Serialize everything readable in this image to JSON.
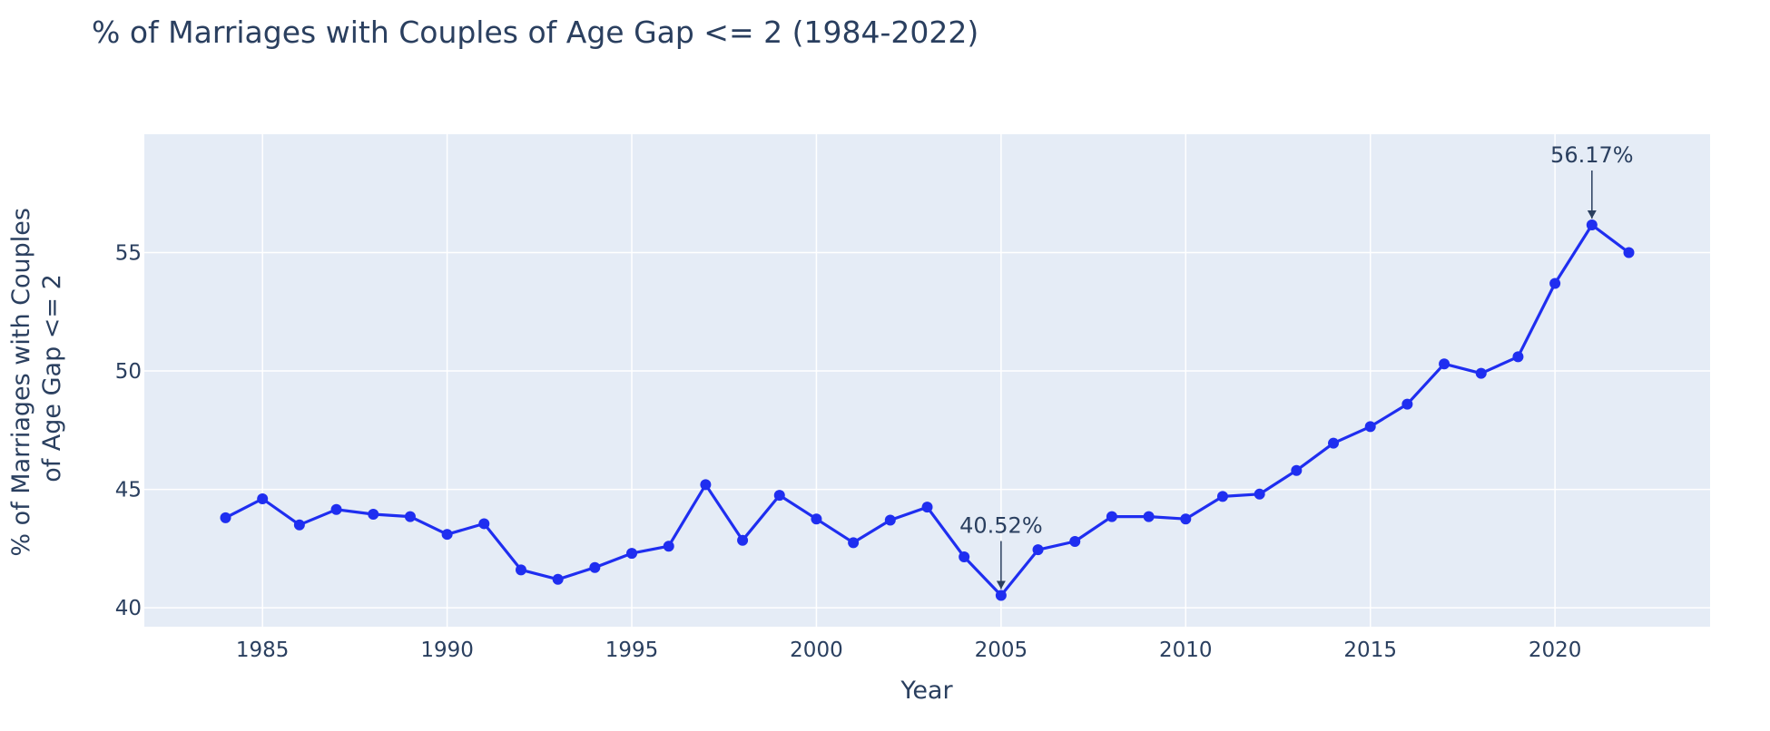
{
  "chart_data": {
    "type": "line",
    "title": "% of Marriages with Couples of Age Gap <= 2 (1984-2022)",
    "xlabel": "Year",
    "ylabel_lines": [
      "% of Marriages with Couples",
      "of Age Gap <= 2"
    ],
    "xlim": [
      1981.8,
      2024.2
    ],
    "ylim": [
      39.2,
      60.0
    ],
    "xticks": [
      1985,
      1990,
      1995,
      2000,
      2005,
      2010,
      2015,
      2020
    ],
    "yticks": [
      40,
      45,
      50,
      55
    ],
    "grid": true,
    "colors": {
      "line": "#1f2ef0",
      "plot_bg": "#e5ecf6",
      "grid": "#ffffff",
      "text": "#2a3f5f"
    },
    "series": [
      {
        "x": [
          1984,
          1985,
          1986,
          1987,
          1988,
          1989,
          1990,
          1991,
          1992,
          1993,
          1994,
          1995,
          1996,
          1997,
          1998,
          1999,
          2000,
          2001,
          2002,
          2003,
          2004,
          2005,
          2006,
          2007,
          2008,
          2009,
          2010,
          2011,
          2012,
          2013,
          2014,
          2015,
          2016,
          2017,
          2018,
          2019,
          2020,
          2021,
          2022
        ],
        "values": [
          43.8,
          44.6,
          43.5,
          44.15,
          43.95,
          43.85,
          43.1,
          43.55,
          41.6,
          41.2,
          41.7,
          42.3,
          42.6,
          45.2,
          42.85,
          44.75,
          43.75,
          42.75,
          43.7,
          44.25,
          42.15,
          40.52,
          42.45,
          42.8,
          43.85,
          43.85,
          43.75,
          44.7,
          44.8,
          45.8,
          46.95,
          47.65,
          48.6,
          50.3,
          49.9,
          50.6,
          53.7,
          56.17,
          55.0
        ]
      }
    ],
    "annotations": [
      {
        "x": 2005,
        "y": 40.52,
        "text": "40.52%"
      },
      {
        "x": 2021,
        "y": 56.17,
        "text": "56.17%"
      }
    ]
  }
}
